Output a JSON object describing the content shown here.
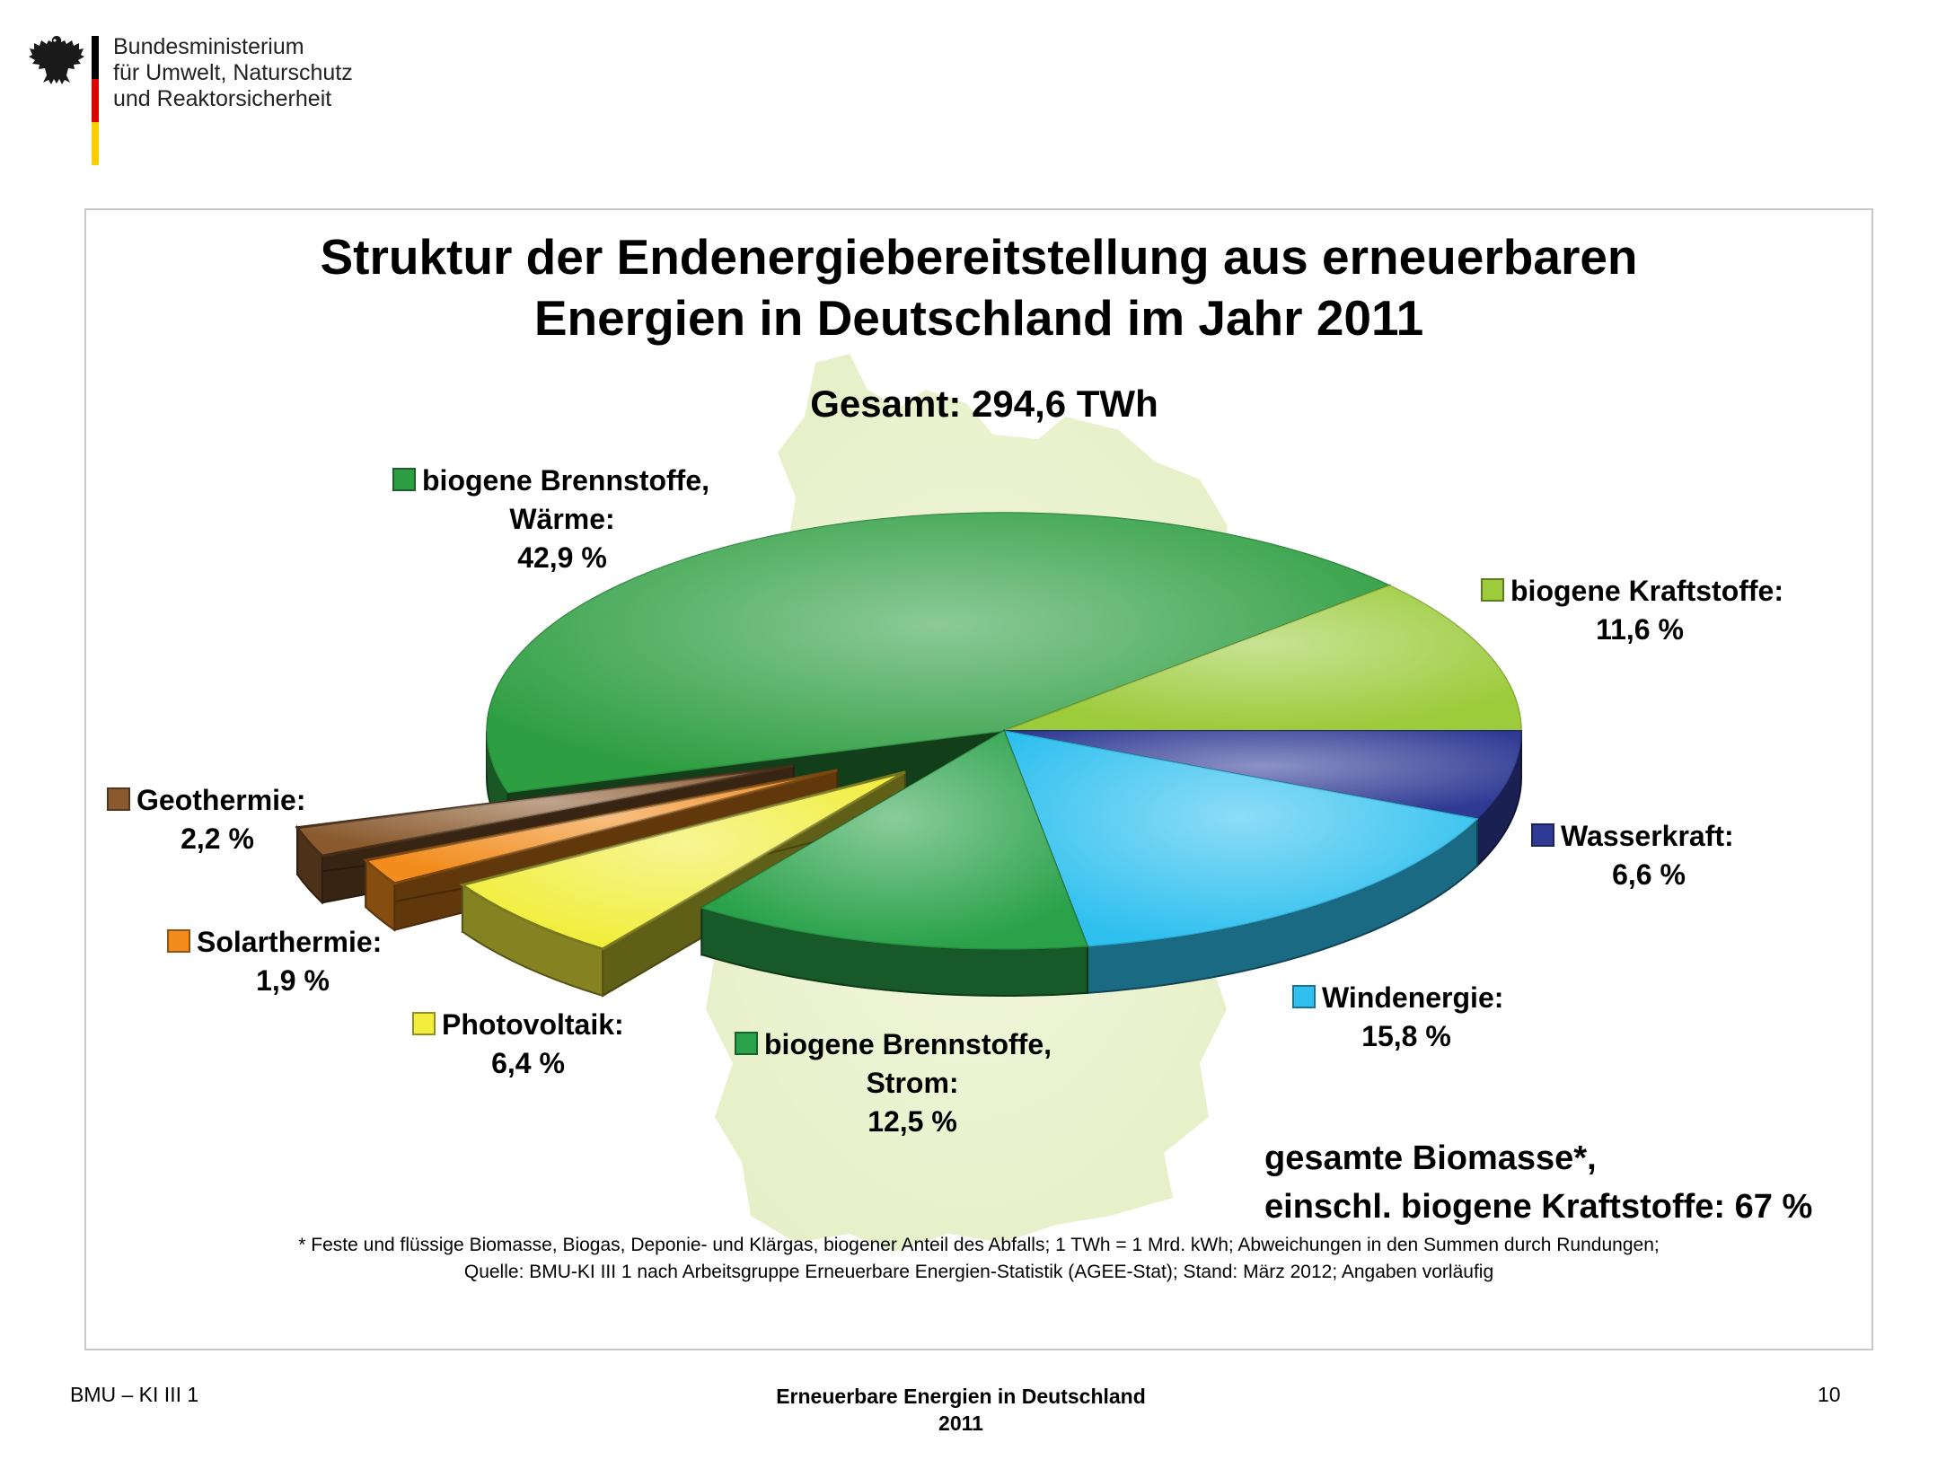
{
  "header": {
    "ministry_lines": [
      "Bundesministerium",
      "für Umwelt, Naturschutz",
      "und Reaktorsicherheit"
    ],
    "flag_colors": [
      "#000000",
      "#dd0000",
      "#ffce00"
    ]
  },
  "chart_data": {
    "type": "pie",
    "title_lines": [
      "Struktur der Endenergiebereitstellung aus erneuerbaren",
      "Energien in Deutschland im Jahr 2011"
    ],
    "subtitle": "Gesamt: 294,6 TWh",
    "unit": "%",
    "slices": [
      {
        "name": "biogene Brennstoffe, Wärme",
        "label_lines": [
          "biogene Brennstoffe,",
          "Wärme:",
          "42,9 %"
        ],
        "value": 42.9,
        "color": "#2e9e42",
        "exploded": false
      },
      {
        "name": "biogene Kraftstoffe",
        "label_lines": [
          "biogene Kraftstoffe:",
          "11,6 %"
        ],
        "value": 11.6,
        "color": "#9ccb3b",
        "exploded": false
      },
      {
        "name": "Wasserkraft",
        "label_lines": [
          "Wasserkraft:",
          "6,6 %"
        ],
        "value": 6.6,
        "color": "#2f3a94",
        "exploded": false
      },
      {
        "name": "Windenergie",
        "label_lines": [
          "Windenergie:",
          "15,8 %"
        ],
        "value": 15.8,
        "color": "#2fc0ef",
        "exploded": false
      },
      {
        "name": "biogene Brennstoffe, Strom",
        "label_lines": [
          "biogene Brennstoffe,",
          "Strom:",
          "12,5 %"
        ],
        "value": 12.5,
        "color": "#2aa24a",
        "exploded": false
      },
      {
        "name": "Photovoltaik",
        "label_lines": [
          "Photovoltaik:",
          "6,4 %"
        ],
        "value": 6.4,
        "color": "#f1ee3c",
        "exploded": true
      },
      {
        "name": "Solarthermie",
        "label_lines": [
          "Solarthermie:",
          "1,9 %"
        ],
        "value": 1.9,
        "color": "#f28c1c",
        "exploded": true
      },
      {
        "name": "Geothermie",
        "label_lines": [
          "Geothermie:",
          "2,2 %"
        ],
        "value": 2.2,
        "color": "#8a5a2e",
        "exploded": true
      }
    ],
    "annotation_lines": [
      "gesamte Biomasse*,",
      "einschl. biogene Kraftstoffe: 67 %"
    ],
    "legend": "labels-around-pie"
  },
  "footnote_lines": [
    "* Feste und flüssige Biomasse, Biogas, Deponie- und Klärgas, biogener Anteil des Abfalls; 1 TWh = 1 Mrd. kWh; Abweichungen in den Summen durch Rundungen;",
    "Quelle: BMU-KI III 1 nach Arbeitsgruppe Erneuerbare Energien-Statistik (AGEE-Stat); Stand: März 2012; Angaben vorläufig"
  ],
  "footer": {
    "left": "BMU – KI III 1",
    "center_lines": [
      "Erneuerbare Energien in Deutschland",
      "2011"
    ],
    "page_number": "10"
  }
}
